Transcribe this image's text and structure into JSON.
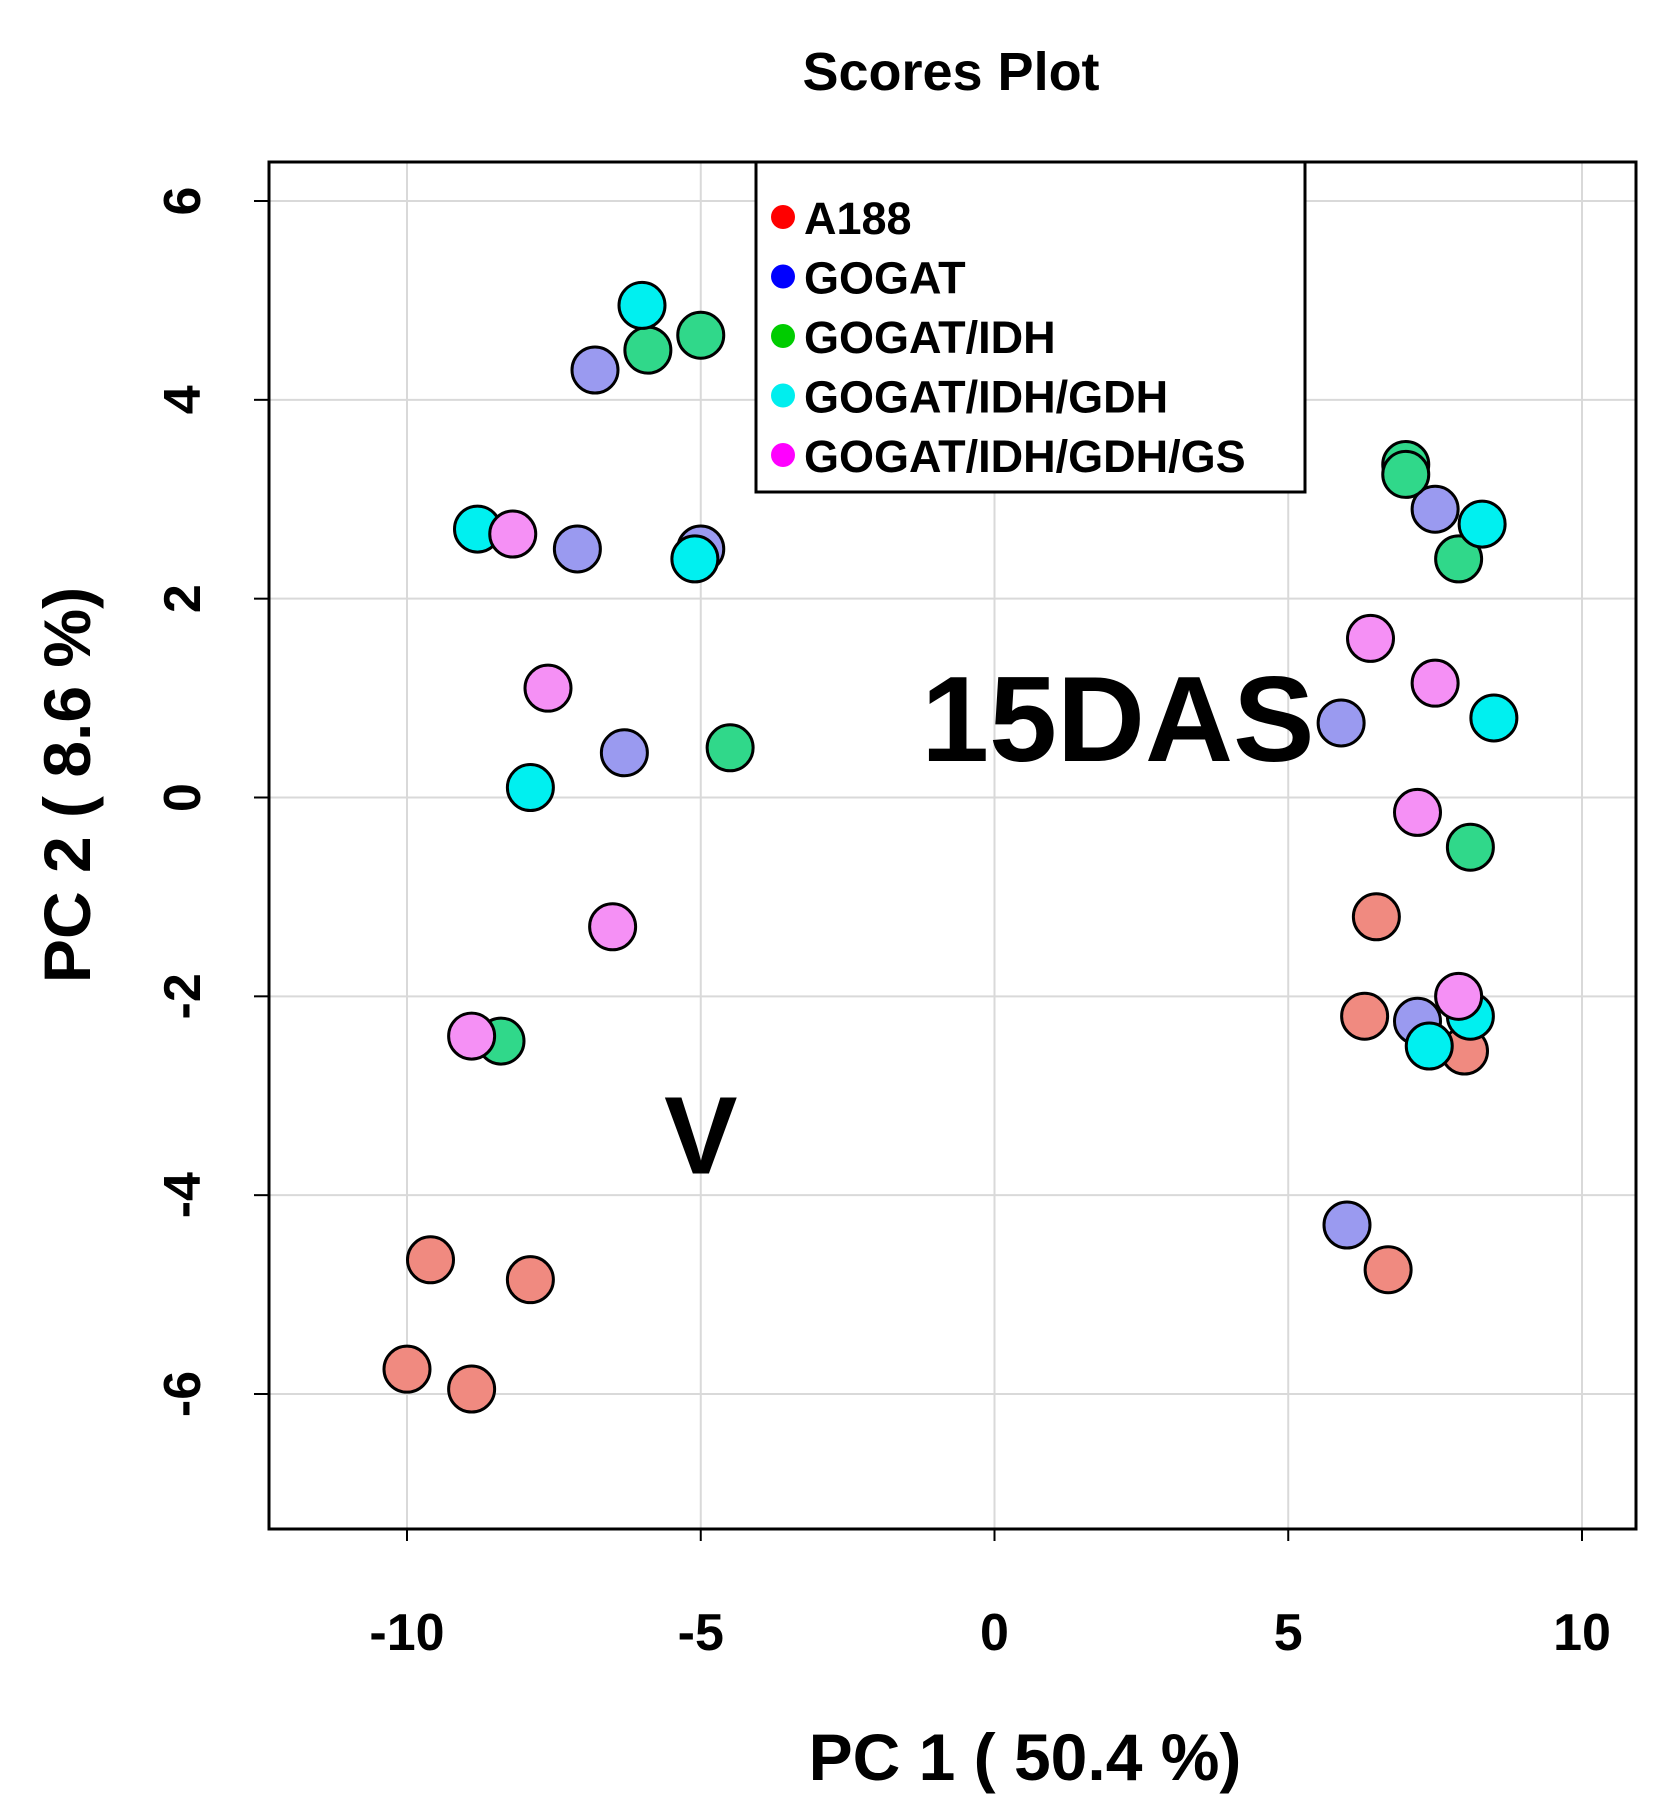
{
  "chart_data": {
    "type": "scatter",
    "title": "Scores Plot",
    "xlabel": "PC 1 ( 50.4 %)",
    "ylabel": "PC 2 ( 8.6 %)",
    "xlim": [
      -12.4,
      10.9
    ],
    "ylim": [
      -7.4,
      6.4
    ],
    "xticks": [
      -10,
      -5,
      0,
      5,
      10
    ],
    "yticks": [
      -6,
      -4,
      -2,
      0,
      2,
      4,
      6
    ],
    "grid": true,
    "legend_position": "top-center",
    "annotations": [
      {
        "text": "15DAS",
        "x": 2.1,
        "y": 0.85
      },
      {
        "text": "V",
        "x": -5.0,
        "y": -3.3
      }
    ],
    "series": [
      {
        "name": "A188",
        "legend_color": "#ff0000",
        "fill": "#f08a80",
        "points": [
          [
            -9.6,
            -4.65
          ],
          [
            -7.9,
            -4.85
          ],
          [
            -10,
            -5.75
          ],
          [
            -8.9,
            -5.95
          ],
          [
            6.5,
            -1.2
          ],
          [
            6.3,
            -2.2
          ],
          [
            8,
            -2.55
          ],
          [
            6.7,
            -4.75
          ]
        ]
      },
      {
        "name": "GOGAT",
        "legend_color": "#0000ff",
        "fill": "#9a9af0",
        "points": [
          [
            -6.8,
            4.3
          ],
          [
            -7.1,
            2.5
          ],
          [
            -5,
            2.5
          ],
          [
            -6.3,
            0.45
          ],
          [
            5.9,
            0.75
          ],
          [
            7.5,
            2.9
          ],
          [
            7.2,
            -2.25
          ],
          [
            6,
            -4.3
          ]
        ]
      },
      {
        "name": "GOGAT/IDH",
        "legend_color": "#00cc00",
        "fill": "#30d88a",
        "points": [
          [
            -5.9,
            4.5
          ],
          [
            -5,
            4.65
          ],
          [
            -4.5,
            0.5
          ],
          [
            -8.4,
            -2.45
          ],
          [
            7,
            3.35
          ],
          [
            7,
            3.25
          ],
          [
            7.9,
            2.4
          ],
          [
            8.1,
            -0.5
          ]
        ]
      },
      {
        "name": "GOGAT/IDH/GDH",
        "legend_color": "#00eeee",
        "fill": "#00f0f0",
        "points": [
          [
            -6,
            4.95
          ],
          [
            -8.8,
            2.7
          ],
          [
            -5.1,
            2.4
          ],
          [
            -7.9,
            0.1
          ],
          [
            8.3,
            2.75
          ],
          [
            8.5,
            0.8
          ],
          [
            8.1,
            -2.2
          ],
          [
            7.4,
            -2.5
          ]
        ]
      },
      {
        "name": "GOGAT/IDH/GDH/GS",
        "legend_color": "#ff00ff",
        "fill": "#f590f5",
        "points": [
          [
            -8.2,
            2.65
          ],
          [
            -7.6,
            1.1
          ],
          [
            -6.5,
            -1.3
          ],
          [
            -8.9,
            -2.4
          ],
          [
            6.4,
            1.6
          ],
          [
            7.5,
            1.15
          ],
          [
            7.2,
            -0.15
          ],
          [
            7.9,
            -2.0
          ]
        ]
      }
    ]
  }
}
